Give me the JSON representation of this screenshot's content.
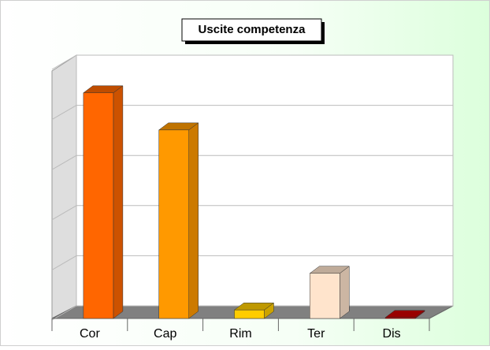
{
  "chart_data": {
    "type": "bar3d",
    "title": "Uscite competenza",
    "categories": [
      "Cor",
      "Cap",
      "Rim",
      "Ter",
      "Dis"
    ],
    "values": [
      4.5,
      3.76,
      0.17,
      0.9,
      0.02
    ],
    "colors": [
      "#ff6600",
      "#ff9900",
      "#ffcc00",
      "#ffe4cc",
      "#cc0000"
    ],
    "ylim": [
      0,
      5
    ],
    "yticks": [
      0,
      1,
      2,
      3,
      4,
      5
    ],
    "grid": true
  }
}
